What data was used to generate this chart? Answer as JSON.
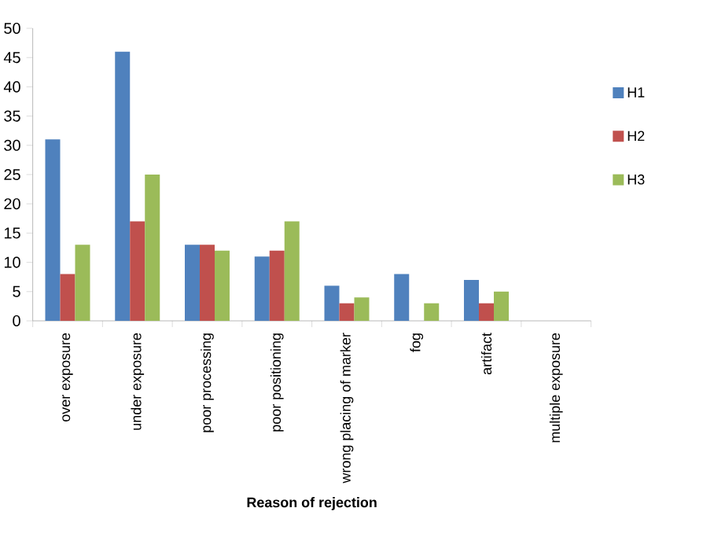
{
  "chart_data": {
    "type": "bar",
    "xlabel": "Reason of  rejection",
    "categories": [
      "over exposure",
      "under exposure",
      "poor processing",
      "poor positioning",
      "wrong placing of marker",
      "fog",
      "artifact",
      "multiple exposure"
    ],
    "series": [
      {
        "name": "H1",
        "color": "#4f81bd",
        "values": [
          31,
          46,
          13,
          11,
          6,
          8,
          7,
          0
        ]
      },
      {
        "name": "H2",
        "color": "#c0504d",
        "values": [
          8,
          17,
          13,
          12,
          3,
          0,
          3,
          0
        ]
      },
      {
        "name": "H3",
        "color": "#9bbb59",
        "values": [
          13,
          25,
          12,
          17,
          4,
          3,
          5,
          0
        ]
      }
    ],
    "ylim": [
      0,
      50
    ],
    "yticks": [
      0,
      5,
      10,
      15,
      20,
      25,
      30,
      35,
      40,
      45,
      50
    ],
    "grid": false,
    "legend": "right"
  }
}
